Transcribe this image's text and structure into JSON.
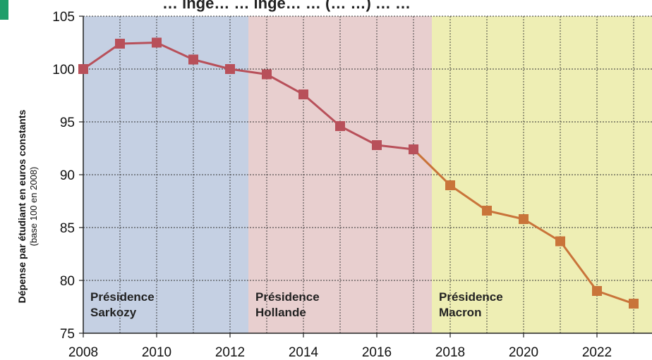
{
  "chart_data": {
    "type": "line",
    "title": "… ingé… … ingé… … (… …) … …",
    "ylabel": "Dépense par étudiant en euros constants",
    "ylabel_sub": "(base 100 en 2008)",
    "xlabel": "",
    "xlim": [
      2008,
      2023.5
    ],
    "ylim": [
      75,
      105
    ],
    "grid": true,
    "x_ticks": [
      2008,
      2010,
      2012,
      2014,
      2016,
      2018,
      2020,
      2022
    ],
    "y_ticks": [
      75,
      80,
      85,
      90,
      95,
      100,
      105
    ],
    "regions": [
      {
        "name": "sarkozy",
        "label_line1": "Présidence",
        "label_line2": "Sarkozy",
        "x_start": 2008,
        "x_end": 2012.5,
        "color": "#c5d0e3"
      },
      {
        "name": "hollande",
        "label_line1": "Présidence",
        "label_line2": "Hollande",
        "x_start": 2012.5,
        "x_end": 2017.5,
        "color": "#e8cfcf"
      },
      {
        "name": "macron",
        "label_line1": "Présidence",
        "label_line2": "Macron",
        "x_start": 2017.5,
        "x_end": 2023.5,
        "color": "#eeeeb4"
      }
    ],
    "series": [
      {
        "x": [
          2008,
          2009,
          2010,
          2011,
          2012,
          2013,
          2014,
          2015,
          2016,
          2017,
          2018,
          2019,
          2020,
          2021,
          2022,
          2023
        ],
        "values": [
          100,
          102.4,
          102.5,
          100.9,
          100,
          99.5,
          97.6,
          94.6,
          92.8,
          92.4,
          89.0,
          86.6,
          85.8,
          83.7,
          79.0,
          77.8
        ],
        "colors": [
          "#b8505a",
          "#b8505a",
          "#b8505a",
          "#b8505a",
          "#b8505a",
          "#b8505a",
          "#b8505a",
          "#b8505a",
          "#b8505a",
          "#b8505a",
          "#c9743a",
          "#c9743a",
          "#c9743a",
          "#c9743a",
          "#c9743a",
          "#c9743a"
        ]
      }
    ]
  }
}
